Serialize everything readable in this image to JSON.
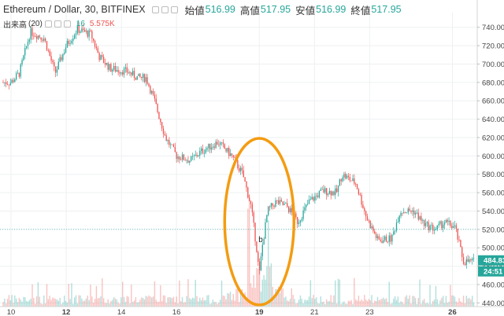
{
  "header": {
    "symbol": "Ethereum / Dollar, 30, BITFINEX",
    "open_label": "始値",
    "open_value": "516.99",
    "high_label": "高値",
    "high_value": "517.95",
    "low_label": "安値",
    "low_value": "516.99",
    "close_label": "終値",
    "close_value": "517.95"
  },
  "volume_legend": {
    "label": "出来高",
    "period": "(20)",
    "value1": "16",
    "value2": "5.575K"
  },
  "chart_data": {
    "type": "candlestick",
    "x_ticks": [
      "10",
      "12",
      "14",
      "16",
      "19",
      "21",
      "23",
      "26"
    ],
    "y_ticks": [
      740,
      720,
      700,
      680,
      660,
      640,
      620,
      600,
      580,
      560,
      540,
      520,
      500,
      480,
      460,
      440
    ],
    "ylim": [
      436,
      756
    ],
    "price_tags": [
      {
        "value": "484.83",
        "color": "#26a69a"
      },
      {
        "value": "24:51",
        "color": "#26a69a"
      }
    ],
    "annotation": {
      "label": "b",
      "shape": "ellipse",
      "color": "#f39c12"
    },
    "trend": [
      {
        "day": 10.0,
        "price": 680
      },
      {
        "day": 10.3,
        "price": 690
      },
      {
        "day": 10.7,
        "price": 735
      },
      {
        "day": 11.2,
        "price": 728
      },
      {
        "day": 11.6,
        "price": 690
      },
      {
        "day": 12.0,
        "price": 720
      },
      {
        "day": 12.4,
        "price": 738
      },
      {
        "day": 12.9,
        "price": 732
      },
      {
        "day": 13.2,
        "price": 708
      },
      {
        "day": 13.6,
        "price": 695
      },
      {
        "day": 14.2,
        "price": 692
      },
      {
        "day": 14.6,
        "price": 685
      },
      {
        "day": 14.9,
        "price": 685
      },
      {
        "day": 15.2,
        "price": 660
      },
      {
        "day": 15.6,
        "price": 620
      },
      {
        "day": 16.0,
        "price": 600
      },
      {
        "day": 16.5,
        "price": 595
      },
      {
        "day": 16.9,
        "price": 605
      },
      {
        "day": 17.5,
        "price": 615
      },
      {
        "day": 18.0,
        "price": 600
      },
      {
        "day": 18.4,
        "price": 580
      },
      {
        "day": 18.7,
        "price": 545
      },
      {
        "day": 18.9,
        "price": 500
      },
      {
        "day": 19.0,
        "price": 470
      },
      {
        "day": 19.1,
        "price": 500
      },
      {
        "day": 19.3,
        "price": 540
      },
      {
        "day": 19.6,
        "price": 550
      },
      {
        "day": 20.0,
        "price": 545
      },
      {
        "day": 20.4,
        "price": 528
      },
      {
        "day": 20.8,
        "price": 550
      },
      {
        "day": 21.3,
        "price": 562
      },
      {
        "day": 21.8,
        "price": 560
      },
      {
        "day": 22.0,
        "price": 580
      },
      {
        "day": 22.5,
        "price": 570
      },
      {
        "day": 22.9,
        "price": 532
      },
      {
        "day": 23.3,
        "price": 508
      },
      {
        "day": 23.8,
        "price": 510
      },
      {
        "day": 24.1,
        "price": 540
      },
      {
        "day": 24.6,
        "price": 540
      },
      {
        "day": 25.0,
        "price": 525
      },
      {
        "day": 25.4,
        "price": 520
      },
      {
        "day": 25.7,
        "price": 528
      },
      {
        "day": 26.1,
        "price": 522
      },
      {
        "day": 26.4,
        "price": 485
      }
    ]
  }
}
